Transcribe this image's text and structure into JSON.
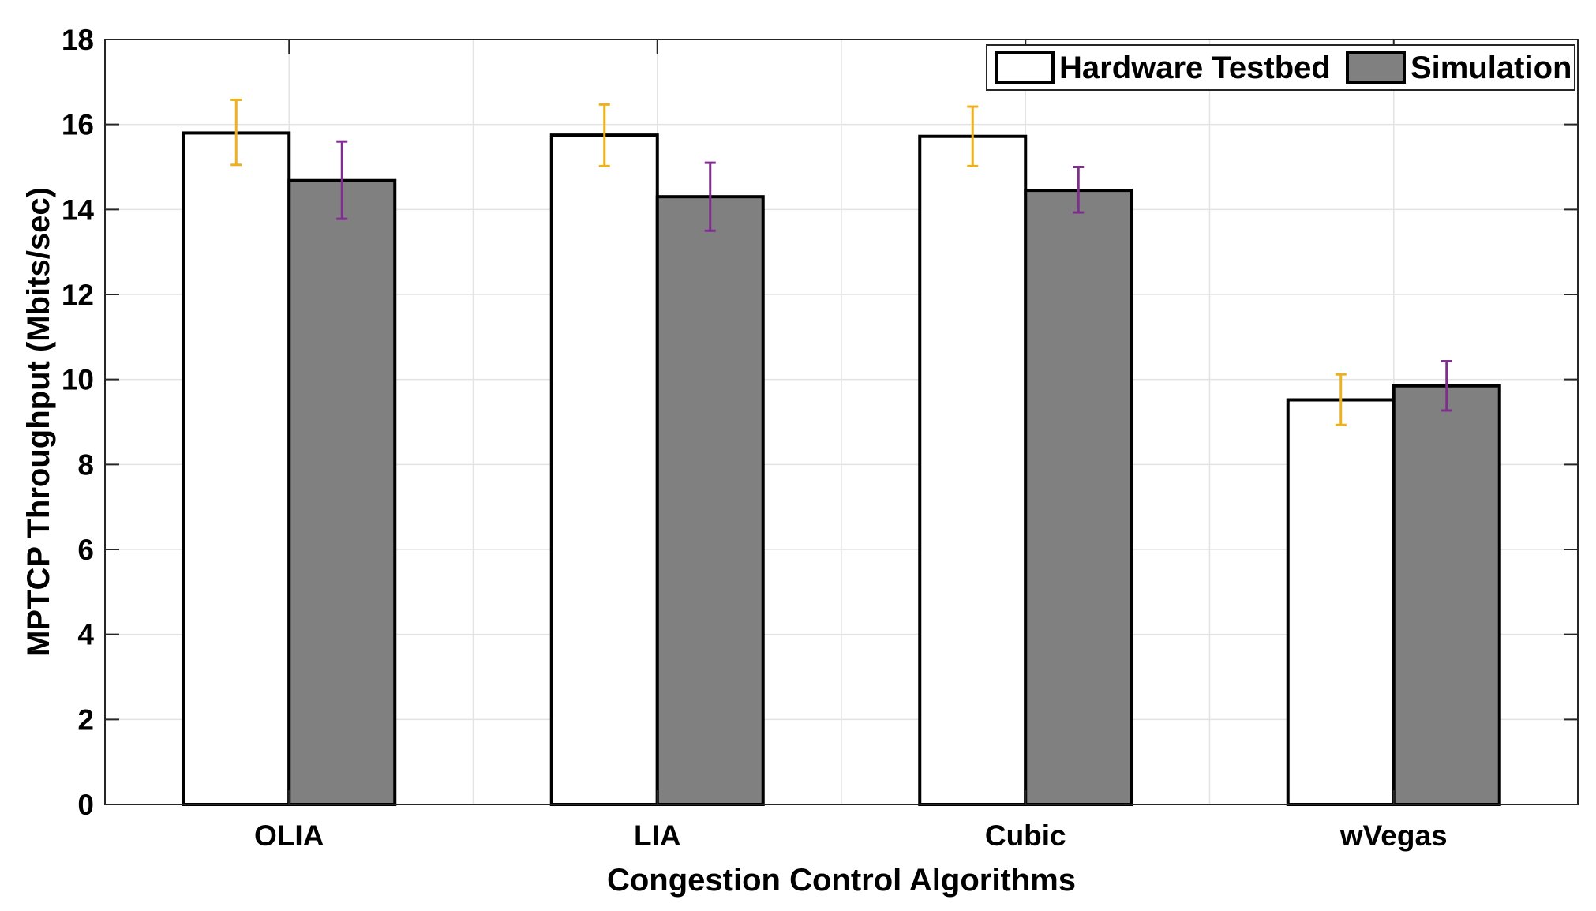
{
  "chart_data": {
    "type": "bar",
    "title": "",
    "xlabel": "Congestion Control Algorithms",
    "ylabel": "MPTCP Throughput (Mbits/sec)",
    "ylim": [
      0,
      18
    ],
    "yticks": [
      0,
      2,
      4,
      6,
      8,
      10,
      12,
      14,
      16,
      18
    ],
    "grid": true,
    "legend_position": "top-right",
    "categories": [
      "OLIA",
      "LIA",
      "Cubic",
      "wVegas"
    ],
    "series": [
      {
        "name": "Hardware Testbed",
        "fill": "#ffffff",
        "error_color": "#edb120",
        "values": [
          15.8,
          15.75,
          15.72,
          9.52
        ],
        "err_low": [
          15.05,
          15.02,
          15.02,
          8.93
        ],
        "err_high": [
          16.58,
          16.47,
          16.42,
          10.12
        ]
      },
      {
        "name": "Simulation",
        "fill": "#808080",
        "error_color": "#7e2f8e",
        "values": [
          14.68,
          14.3,
          14.45,
          9.85
        ],
        "err_low": [
          13.78,
          13.5,
          13.93,
          9.27
        ],
        "err_high": [
          15.6,
          15.1,
          15.0,
          10.43
        ]
      }
    ]
  }
}
